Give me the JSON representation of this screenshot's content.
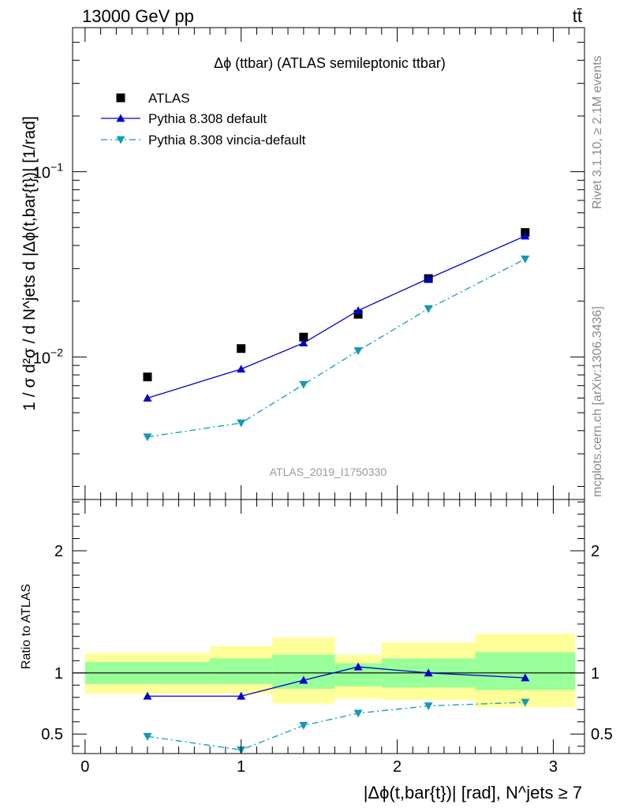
{
  "header": {
    "energy_label": "13000 GeV pp",
    "process_label": "tt̄"
  },
  "side_labels": {
    "rivet": "Rivet 3.1.10, ≥ 2.1M events",
    "mcplots": "mcplots.cern.ch [arXiv:1306.3436]"
  },
  "watermark": "ATLAS_2019_I1750330",
  "chart_data": [
    {
      "panel": "main",
      "type": "line",
      "title": "Δϕ (ttbar) (ATLAS semileptonic ttbar)",
      "ylabel": "1 / σ d²σ / d N^jets d |Δϕ(t,bar{t})| [1/rad]",
      "yscale": "log",
      "ylim": [
        0.0017,
        0.6
      ],
      "xlim": [
        -0.08,
        3.2
      ],
      "legend_position": "top-left",
      "x": [
        0.4,
        1.0,
        1.4,
        1.75,
        2.2,
        2.82
      ],
      "series": [
        {
          "name": "ATLAS",
          "marker": "square",
          "color": "#000000",
          "values": [
            0.0078,
            0.0111,
            0.0128,
            0.017,
            0.0265,
            0.047
          ]
        },
        {
          "name": "Pythia 8.308 default",
          "marker": "triangle-up",
          "style": "solid",
          "color": "#0000cc",
          "values": [
            0.006,
            0.0086,
            0.0119,
            0.0178,
            0.0265,
            0.045
          ]
        },
        {
          "name": "Pythia 8.308 vincia-default",
          "marker": "triangle-down",
          "style": "dashdot",
          "color": "#1199bb",
          "values": [
            0.0037,
            0.0044,
            0.0071,
            0.0108,
            0.0182,
            0.0338
          ]
        }
      ],
      "y_ticks": [
        {
          "value": 0.01,
          "base": "10",
          "exp": "−2"
        },
        {
          "value": 0.1,
          "base": "10",
          "exp": "−1"
        }
      ]
    },
    {
      "panel": "ratio",
      "type": "line",
      "ylabel": "Ratio to ATLAS",
      "xlabel": "|Δϕ(t,bar{t})| [rad], N^jets ≥ 7",
      "ylim": [
        0.34,
        2.42
      ],
      "xlim": [
        -0.08,
        3.2
      ],
      "y_tick_labels": [
        "0.5",
        "1",
        "2"
      ],
      "y_tick_values": [
        0.5,
        1,
        2
      ],
      "x_tick_labels": [
        "0",
        "1",
        "2",
        "3"
      ],
      "x_tick_values": [
        0,
        1,
        2,
        3
      ],
      "reference_line": 1,
      "x": [
        0.4,
        1.0,
        1.4,
        1.75,
        2.2,
        2.82
      ],
      "uncertainty_bins": [
        {
          "x0": 0.0,
          "x1": 0.8,
          "yellow": [
            0.83,
            1.16
          ],
          "green": [
            0.91,
            1.09
          ]
        },
        {
          "x0": 0.8,
          "x1": 1.2,
          "yellow": [
            0.83,
            1.22
          ],
          "green": [
            0.91,
            1.12
          ]
        },
        {
          "x0": 1.2,
          "x1": 1.6,
          "yellow": [
            0.75,
            1.29
          ],
          "green": [
            0.87,
            1.15
          ]
        },
        {
          "x0": 1.6,
          "x1": 1.9,
          "yellow": [
            0.79,
            1.15
          ],
          "green": [
            0.89,
            1.08
          ]
        },
        {
          "x0": 1.9,
          "x1": 2.5,
          "yellow": [
            0.78,
            1.25
          ],
          "green": [
            0.88,
            1.12
          ]
        },
        {
          "x0": 2.5,
          "x1": 3.14,
          "yellow": [
            0.72,
            1.32
          ],
          "green": [
            0.86,
            1.17
          ]
        }
      ],
      "series": [
        {
          "name": "Pythia 8.308 default",
          "color": "#0000cc",
          "marker": "triangle-up",
          "style": "solid",
          "values": [
            0.81,
            0.81,
            0.94,
            1.05,
            1.0,
            0.96
          ],
          "errors": [
            0.02,
            0.03,
            0.02,
            0.03,
            0.01,
            0.01
          ]
        },
        {
          "name": "Pythia 8.308 vincia-default",
          "color": "#1199bb",
          "marker": "triangle-down",
          "style": "dashdot",
          "values": [
            0.48,
            0.37,
            0.57,
            0.67,
            0.73,
            0.76
          ],
          "errors": [
            0.02,
            0.02,
            0.02,
            0.02,
            0.01,
            0.01
          ]
        }
      ]
    }
  ]
}
